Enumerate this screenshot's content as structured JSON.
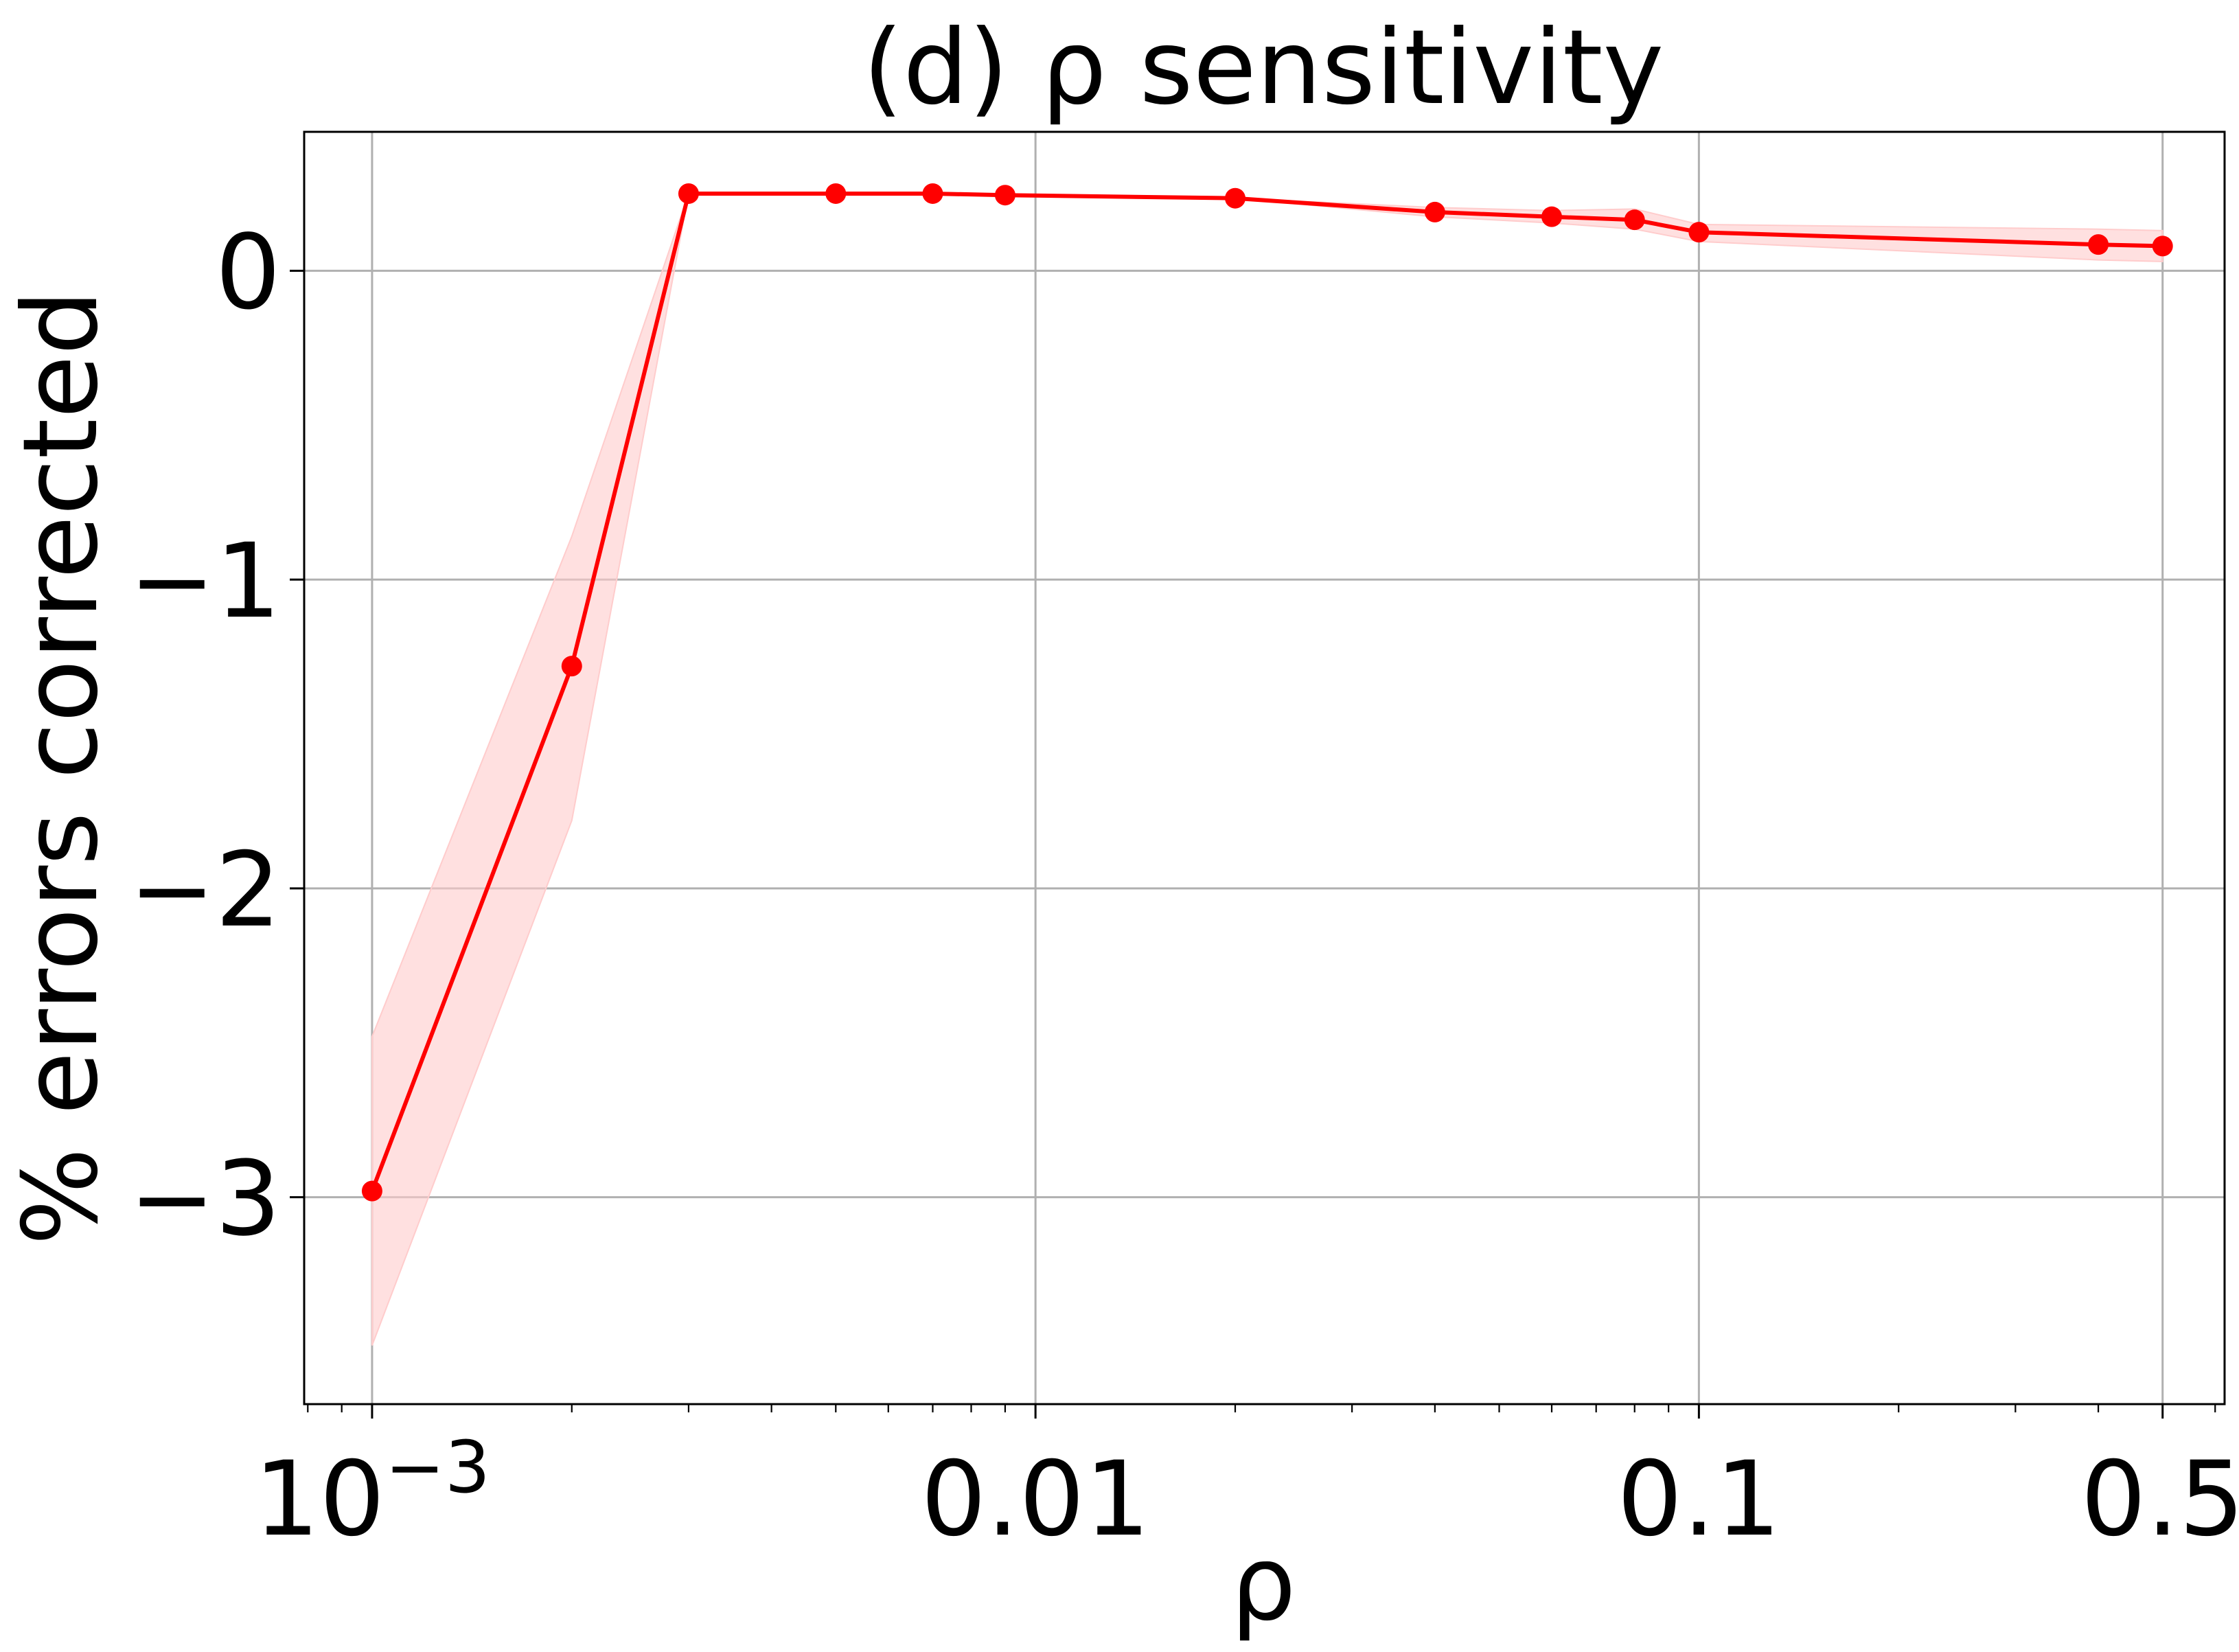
{
  "chart_data": {
    "type": "line",
    "title": "(d) ρ sensitivity",
    "xlabel": "ρ",
    "ylabel": "% errors corrected",
    "x_scale": "log",
    "xlim": [
      0.00079,
      0.62
    ],
    "ylim": [
      -3.67,
      0.45
    ],
    "grid": true,
    "legend": "none",
    "x_ticks": [
      {
        "value": 0.001,
        "label": "10",
        "exp": "−3"
      },
      {
        "value": 0.01,
        "label": "0.01",
        "exp": ""
      },
      {
        "value": 0.1,
        "label": "0.1",
        "exp": ""
      },
      {
        "value": 0.5,
        "label": "0.5",
        "exp": ""
      }
    ],
    "y_ticks": [
      {
        "value": 0,
        "label": "0"
      },
      {
        "value": -1,
        "label": "−1"
      },
      {
        "value": -2,
        "label": "−2"
      },
      {
        "value": -3,
        "label": "−3"
      }
    ],
    "series": [
      {
        "color": "#ff0000",
        "band_color": "#ffcccc",
        "x": [
          0.001,
          0.002,
          0.003,
          0.005,
          0.007,
          0.009,
          0.02,
          0.04,
          0.06,
          0.08,
          0.1,
          0.4,
          0.5
        ],
        "y": [
          -2.98,
          -1.28,
          0.25,
          0.25,
          0.25,
          0.245,
          0.235,
          0.19,
          0.175,
          0.165,
          0.125,
          0.085,
          0.08
        ],
        "lower": [
          -3.48,
          -1.78,
          0.25,
          0.25,
          0.25,
          0.245,
          0.235,
          0.175,
          0.155,
          0.135,
          0.095,
          0.035,
          0.03
        ],
        "upper": [
          -2.48,
          -0.86,
          0.25,
          0.25,
          0.25,
          0.245,
          0.235,
          0.205,
          0.195,
          0.2,
          0.15,
          0.135,
          0.13
        ]
      }
    ]
  }
}
